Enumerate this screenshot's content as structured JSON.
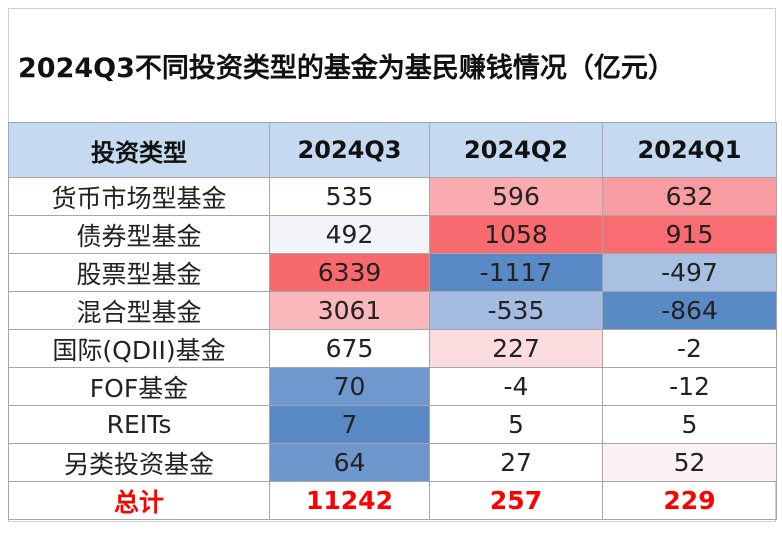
{
  "title": "2024Q3不同投资类型的基金为基民赚钱情况（亿元）",
  "chart_data": {
    "type": "table",
    "title": "2024Q3不同投资类型的基金为基民赚钱情况（亿元）",
    "columns": [
      "投资类型",
      "2024Q3",
      "2024Q2",
      "2024Q1"
    ],
    "rows": [
      {
        "label": "货币市场型基金",
        "values": [
          "535",
          "596",
          "632"
        ],
        "colors": [
          "#ffffff",
          "#f9abb0",
          "#f89ca1"
        ]
      },
      {
        "label": "债券型基金",
        "values": [
          "492",
          "1058",
          "915"
        ],
        "colors": [
          "#f2f4fa",
          "#f86b70",
          "#f86c72"
        ]
      },
      {
        "label": "股票型基金",
        "values": [
          "6339",
          "-1117",
          "-497"
        ],
        "colors": [
          "#f8696b",
          "#5a8ac6",
          "#a8c0e2"
        ]
      },
      {
        "label": "混合型基金",
        "values": [
          "3061",
          "-535",
          "-864"
        ],
        "colors": [
          "#fbb8bc",
          "#a3bce0",
          "#5a8ac6"
        ]
      },
      {
        "label": "国际(QDII)基金",
        "values": [
          "675",
          "227",
          "-2"
        ],
        "colors": [
          "#ffffff",
          "#fbdde0",
          "#ffffff"
        ]
      },
      {
        "label": "FOF基金",
        "values": [
          "70",
          "-4",
          "-12"
        ],
        "colors": [
          "#6f98ce",
          "#ffffff",
          "#ffffff"
        ]
      },
      {
        "label": "REITs",
        "values": [
          "7",
          "5",
          "5"
        ],
        "colors": [
          "#5a8ac6",
          "#ffffff",
          "#ffffff"
        ]
      },
      {
        "label": "另类投资基金",
        "values": [
          "64",
          "27",
          "52"
        ],
        "colors": [
          "#6d97cd",
          "#ffffff",
          "#fcf2f4"
        ]
      }
    ],
    "total": {
      "label": "总计",
      "values": [
        "11242",
        "257",
        "229"
      ]
    },
    "header_color": "#c5d9f1",
    "total_color": "#ff0000"
  }
}
